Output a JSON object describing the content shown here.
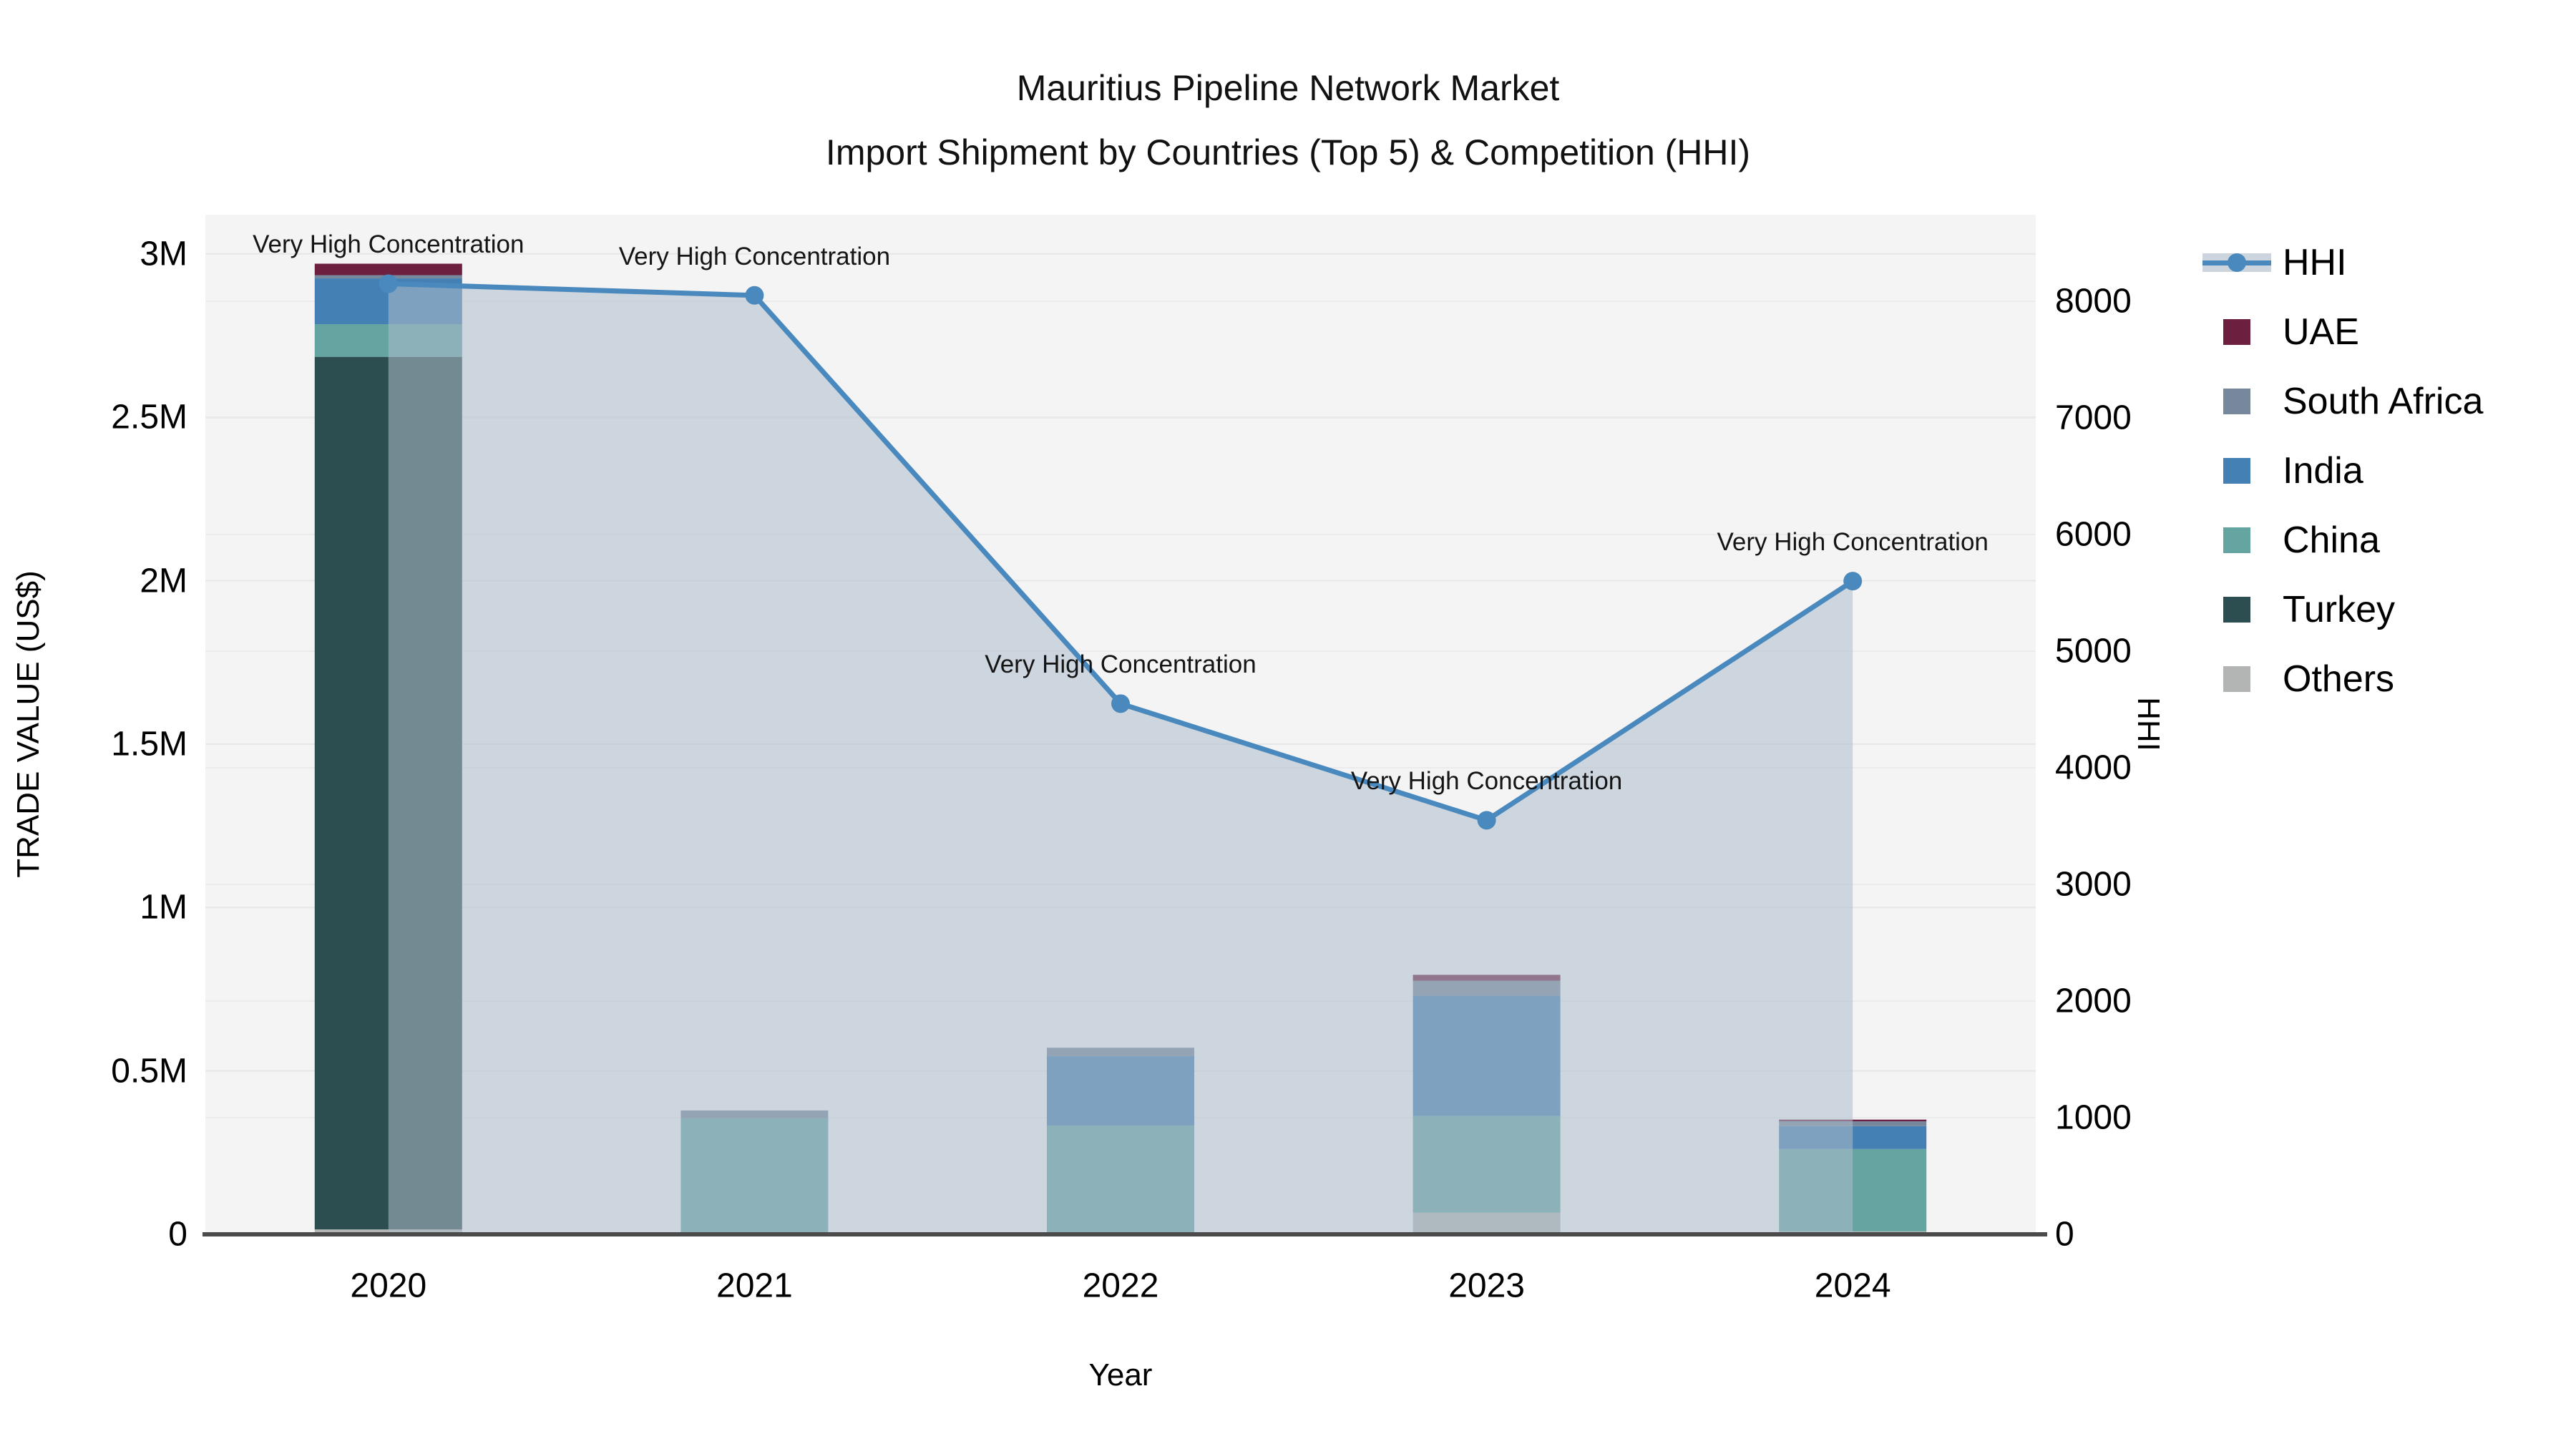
{
  "title": {
    "line1": "Mauritius Pipeline Network Market",
    "line2": "Import Shipment by Countries (Top 5) & Competition (HHI)"
  },
  "axes": {
    "y_left": {
      "label": "TRADE VALUE (US$)",
      "ticks": [
        {
          "value": 0,
          "label": "0"
        },
        {
          "value": 500000,
          "label": "0.5M"
        },
        {
          "value": 1000000,
          "label": "1M"
        },
        {
          "value": 1500000,
          "label": "1.5M"
        },
        {
          "value": 2000000,
          "label": "2M"
        },
        {
          "value": 2500000,
          "label": "2.5M"
        },
        {
          "value": 3000000,
          "label": "3M"
        }
      ]
    },
    "y_right": {
      "label": "HHI",
      "ticks": [
        {
          "value": 0,
          "label": "0"
        },
        {
          "value": 1000,
          "label": "1000"
        },
        {
          "value": 2000,
          "label": "2000"
        },
        {
          "value": 3000,
          "label": "3000"
        },
        {
          "value": 4000,
          "label": "4000"
        },
        {
          "value": 5000,
          "label": "5000"
        },
        {
          "value": 6000,
          "label": "6000"
        },
        {
          "value": 7000,
          "label": "7000"
        },
        {
          "value": 8000,
          "label": "8000"
        }
      ]
    },
    "x": {
      "label": "Year",
      "categories": [
        "2020",
        "2021",
        "2022",
        "2023",
        "2024"
      ]
    }
  },
  "legend": {
    "items": [
      {
        "label": "HHI",
        "type": "line",
        "color": "#4a89bd",
        "band_color": "#ccd5de"
      },
      {
        "label": "UAE",
        "type": "swatch",
        "color": "#6d1f40"
      },
      {
        "label": "South Africa",
        "type": "swatch",
        "color": "#77889c"
      },
      {
        "label": "India",
        "type": "swatch",
        "color": "#4580b4"
      },
      {
        "label": "China",
        "type": "swatch",
        "color": "#64a5a2"
      },
      {
        "label": "Turkey",
        "type": "swatch",
        "color": "#2d4e50"
      },
      {
        "label": "Others",
        "type": "swatch",
        "color": "#b2b5b4"
      }
    ]
  },
  "chart_data": {
    "type": "combo-stacked-bar-line",
    "title": "Mauritius Pipeline Network Market — Import Shipment by Countries (Top 5) & Competition (HHI)",
    "xlabel": "Year",
    "ylabel": "TRADE VALUE (US$)",
    "y2label": "HHI",
    "categories": [
      "2020",
      "2021",
      "2022",
      "2023",
      "2024"
    ],
    "ylim": [
      0,
      3120000
    ],
    "y2lim": [
      0,
      8742
    ],
    "grid": true,
    "legend_position": "right",
    "bar_series_bottom_to_top": [
      {
        "name": "Others",
        "color": "#b2b5b4",
        "values": [
          15000,
          0,
          0,
          66000,
          9000
        ]
      },
      {
        "name": "Turkey",
        "color": "#2d4e50",
        "values": [
          2670000,
          0,
          0,
          0,
          0
        ]
      },
      {
        "name": "China",
        "color": "#64a5a2",
        "values": [
          100000,
          355000,
          333000,
          296000,
          252000
        ]
      },
      {
        "name": "India",
        "color": "#4580b4",
        "values": [
          140000,
          0,
          212000,
          368000,
          70000
        ]
      },
      {
        "name": "South Africa",
        "color": "#77889c",
        "values": [
          10000,
          24000,
          26000,
          46000,
          15000
        ]
      },
      {
        "name": "UAE",
        "color": "#6d1f40",
        "values": [
          35000,
          0,
          0,
          18000,
          5000
        ]
      }
    ],
    "bar_totals": [
      2970000,
      379000,
      571000,
      794000,
      351000
    ],
    "line_series": {
      "name": "HHI",
      "axis": "right",
      "color": "#4a89bd",
      "area_fill": "rgba(173,188,203,0.55)",
      "values": [
        8150,
        8050,
        4550,
        3550,
        5600
      ]
    },
    "annotations": [
      {
        "x": "2020",
        "text": "Very High Concentration"
      },
      {
        "x": "2021",
        "text": "Very High Concentration"
      },
      {
        "x": "2022",
        "text": "Very High Concentration"
      },
      {
        "x": "2023",
        "text": "Very High Concentration"
      },
      {
        "x": "2024",
        "text": "Very High Concentration"
      }
    ],
    "style": {
      "plot_bg": "#f4f4f5",
      "grid_color_left": "#e7e7e9",
      "grid_color_right": "#ebebed",
      "axis_line_color": "#4b4b4b"
    }
  }
}
